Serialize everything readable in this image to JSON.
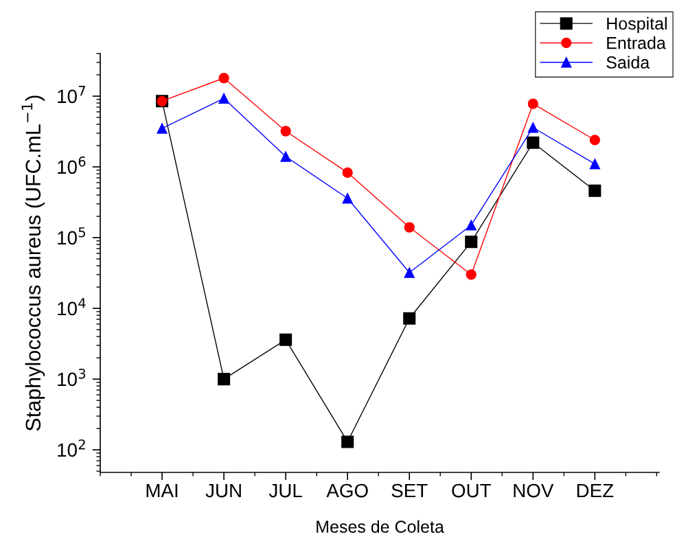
{
  "chart_data": {
    "type": "line",
    "xlabel": "Meses de Coleta",
    "ylabel": "Staphylococcus aureus (UFC.mL$^{−1}$)",
    "categories": [
      "MAI",
      "JUN",
      "JUL",
      "AGO",
      "SET",
      "OUT",
      "NOV",
      "DEZ"
    ],
    "series": [
      {
        "name": "Hospital",
        "color": "#000000",
        "marker": "square",
        "values": [
          8500000,
          1000,
          3600,
          130,
          7200,
          87000,
          2200000,
          460000
        ]
      },
      {
        "name": "Entrada",
        "color": "#ff0000",
        "marker": "circle",
        "values": [
          8500000,
          18000000,
          3200000,
          830000,
          140000,
          30000,
          7800000,
          2400000
        ]
      },
      {
        "name": "Saida",
        "color": "#0000ff",
        "marker": "triangle",
        "values": [
          3500000,
          9300000,
          1400000,
          360000,
          32000,
          150000,
          3600000,
          1100000
        ]
      }
    ],
    "log": "y",
    "ylim": [
      48,
      40000000
    ],
    "yticks": [
      {
        "value": 100,
        "label": "10$^{2}$"
      },
      {
        "value": 1000,
        "label": "10$^{3}$"
      },
      {
        "value": 10000,
        "label": "10$^{4}$"
      },
      {
        "value": 100000,
        "label": "10$^{5}$"
      },
      {
        "value": 1000000,
        "label": "10$^{6}$"
      },
      {
        "value": 10000000,
        "label": "10$^{7}$"
      }
    ],
    "grid": false,
    "legend": "top right",
    "line_style": "solid"
  }
}
